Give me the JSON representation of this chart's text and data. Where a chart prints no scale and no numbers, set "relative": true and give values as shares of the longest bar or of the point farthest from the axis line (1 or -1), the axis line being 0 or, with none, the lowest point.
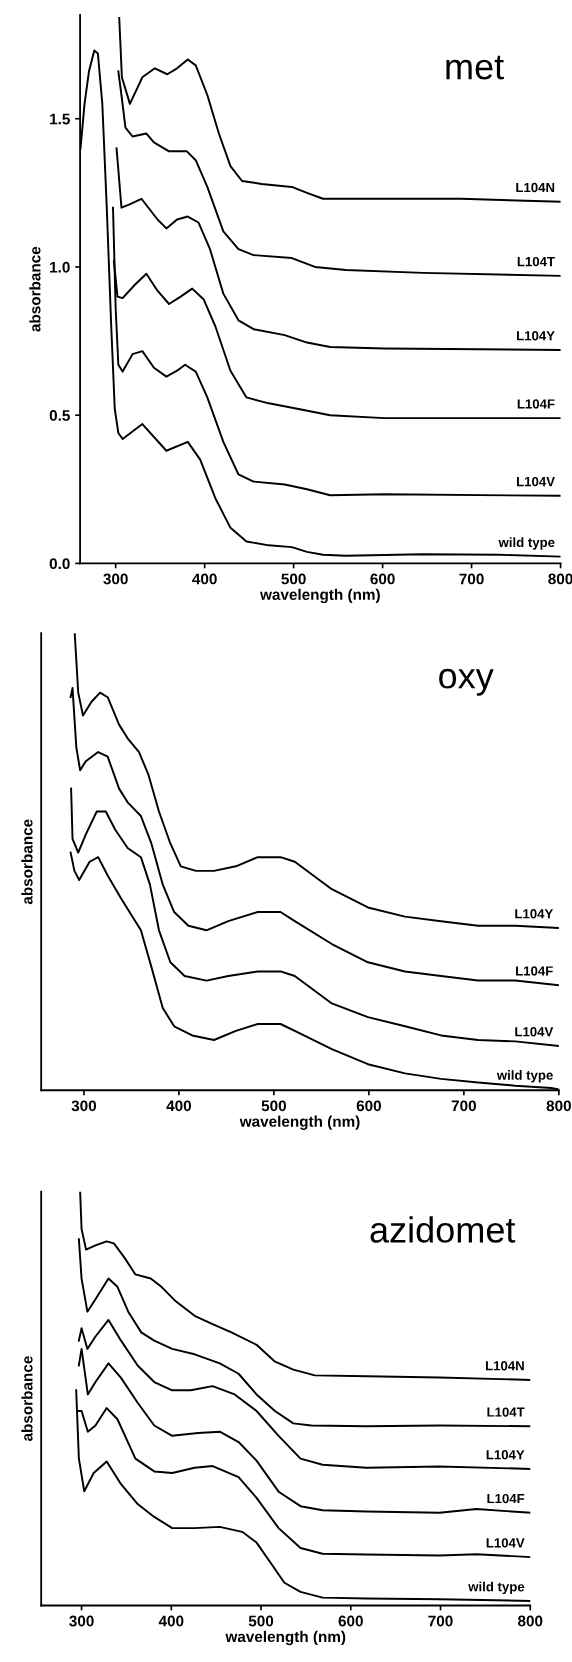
{
  "chart_data": [
    {
      "type": "line",
      "title": "met",
      "xlabel": "wavelength (nm)",
      "ylabel": "absorbance",
      "xlim": [
        260,
        800
      ],
      "xticks": [
        300,
        400,
        500,
        600,
        700,
        800
      ],
      "ylim": [
        0,
        1.85
      ],
      "yticks": [
        {
          "value": 0,
          "label": "0.0"
        },
        0.5,
        {
          "value": 1,
          "label": "1.0"
        },
        1.5
      ],
      "grid": false,
      "legend": false,
      "marker": "none",
      "line_style": "solid",
      "series": [
        {
          "name": "L104N",
          "color": "#000000",
          "x": [
            304,
            307,
            316,
            330,
            344,
            358,
            369,
            381,
            390,
            403,
            416,
            429,
            442,
            464,
            498,
            515,
            533,
            559,
            602,
            688,
            800
          ],
          "values": [
            1.84,
            1.64,
            1.55,
            1.64,
            1.67,
            1.65,
            1.67,
            1.7,
            1.68,
            1.58,
            1.45,
            1.34,
            1.29,
            1.28,
            1.27,
            1.25,
            1.23,
            1.23,
            1.23,
            1.23,
            1.22
          ]
        },
        {
          "name": "L104T",
          "color": "#000000",
          "x": [
            303,
            306.5,
            311,
            319,
            334.5,
            343,
            360,
            380,
            390,
            403,
            421,
            438,
            455,
            498,
            524,
            559,
            645,
            800
          ],
          "values": [
            1.66,
            1.58,
            1.47,
            1.44,
            1.45,
            1.42,
            1.39,
            1.39,
            1.36,
            1.27,
            1.12,
            1.06,
            1.04,
            1.03,
            1.0,
            0.99,
            0.98,
            0.97
          ]
        },
        {
          "name": "L104Y",
          "color": "#000000",
          "x": [
            301,
            306.5,
            315,
            329,
            347,
            357,
            369,
            381,
            393,
            406,
            421,
            438,
            455,
            490,
            515,
            541,
            602,
            800
          ],
          "values": [
            1.4,
            1.2,
            1.21,
            1.23,
            1.16,
            1.13,
            1.16,
            1.17,
            1.15,
            1.06,
            0.91,
            0.82,
            0.79,
            0.77,
            0.745,
            0.73,
            0.725,
            0.72
          ]
        },
        {
          "name": "L104F",
          "color": "#000000",
          "x": [
            298,
            302,
            307.8,
            321.6,
            334.5,
            347,
            360,
            373,
            386,
            399,
            412,
            429,
            447,
            472,
            507,
            541,
            602,
            800
          ],
          "values": [
            1.02,
            0.9,
            0.895,
            0.94,
            0.977,
            0.92,
            0.875,
            0.9,
            0.927,
            0.89,
            0.8,
            0.65,
            0.56,
            0.54,
            0.52,
            0.5,
            0.49,
            0.49
          ]
        },
        {
          "name": "L104V",
          "color": "#000000",
          "x": [
            297,
            300,
            303,
            307.8,
            319,
            330,
            343,
            357,
            369,
            378,
            390,
            403,
            421,
            438,
            455,
            490,
            515,
            541,
            602,
            800
          ],
          "values": [
            1.2,
            0.86,
            0.67,
            0.647,
            0.706,
            0.716,
            0.66,
            0.63,
            0.65,
            0.67,
            0.647,
            0.56,
            0.41,
            0.3,
            0.276,
            0.266,
            0.25,
            0.23,
            0.233,
            0.228
          ]
        },
        {
          "name": "wild type",
          "color": "#000000",
          "x": [
            260.5,
            265,
            270,
            276,
            280,
            285,
            290,
            295,
            299,
            303,
            307.8,
            330,
            357,
            381,
            395,
            412,
            429,
            447,
            472,
            498,
            515,
            533,
            559,
            645,
            731,
            800
          ],
          "values": [
            1.4,
            1.55,
            1.66,
            1.73,
            1.72,
            1.55,
            1.2,
            0.8,
            0.52,
            0.44,
            0.42,
            0.47,
            0.38,
            0.41,
            0.35,
            0.22,
            0.12,
            0.074,
            0.061,
            0.055,
            0.039,
            0.029,
            0.026,
            0.031,
            0.029,
            0.023
          ]
        }
      ]
    },
    {
      "type": "line",
      "title": "oxy",
      "xlabel": "wavelength (nm)",
      "ylabel": "absorbance",
      "relative": true,
      "tick_labels": "x",
      "xlim": [
        255,
        800
      ],
      "xticks": [
        300,
        400,
        500,
        600,
        700,
        800
      ],
      "grid": false,
      "legend": false,
      "marker": "none",
      "line_style": "solid",
      "series": [
        {
          "name": "L104Y",
          "color": "#000000",
          "x": [
            290.3,
            294,
            299,
            308,
            317,
            325,
            337,
            346,
            358,
            368,
            379,
            391,
            402,
            418,
            437,
            460,
            483,
            507,
            522,
            561,
            599,
            638,
            676,
            715,
            754,
            800
          ],
          "values": [
            1.0,
            0.87,
            0.82,
            0.85,
            0.87,
            0.86,
            0.8,
            0.77,
            0.74,
            0.69,
            0.61,
            0.54,
            0.49,
            0.48,
            0.48,
            0.49,
            0.51,
            0.51,
            0.5,
            0.44,
            0.4,
            0.38,
            0.37,
            0.36,
            0.36,
            0.355
          ]
        },
        {
          "name": "L104F",
          "color": "#000000",
          "x": [
            286,
            288,
            292,
            296,
            302,
            315,
            325,
            337,
            346,
            360,
            371,
            383,
            395,
            410,
            429,
            452,
            483,
            507,
            522,
            561,
            599,
            638,
            676,
            715,
            754,
            800
          ],
          "values": [
            0.86,
            0.88,
            0.75,
            0.7,
            0.72,
            0.74,
            0.73,
            0.66,
            0.63,
            0.6,
            0.54,
            0.45,
            0.39,
            0.36,
            0.35,
            0.37,
            0.39,
            0.39,
            0.37,
            0.32,
            0.28,
            0.26,
            0.25,
            0.24,
            0.24,
            0.23
          ]
        },
        {
          "name": "L104V",
          "color": "#000000",
          "x": [
            286.5,
            288,
            294,
            302,
            313.5,
            323,
            333,
            346,
            360,
            369.5,
            379,
            391,
            406,
            429,
            452,
            483,
            507,
            522,
            561,
            599,
            638,
            676,
            715,
            754,
            800
          ],
          "values": [
            0.66,
            0.55,
            0.52,
            0.56,
            0.61,
            0.61,
            0.57,
            0.53,
            0.51,
            0.45,
            0.35,
            0.28,
            0.25,
            0.24,
            0.25,
            0.26,
            0.26,
            0.25,
            0.19,
            0.16,
            0.14,
            0.12,
            0.11,
            0.107,
            0.097
          ]
        },
        {
          "name": "wild type",
          "color": "#000000",
          "x": [
            286,
            290,
            295,
            306,
            315,
            325,
            339,
            348,
            360,
            371,
            383,
            395,
            414,
            437,
            460,
            483,
            507,
            522,
            561,
            599,
            638,
            676,
            715,
            754,
            792,
            800
          ],
          "values": [
            0.52,
            0.48,
            0.46,
            0.5,
            0.51,
            0.47,
            0.42,
            0.39,
            0.35,
            0.27,
            0.18,
            0.14,
            0.12,
            0.11,
            0.13,
            0.145,
            0.145,
            0.13,
            0.09,
            0.057,
            0.037,
            0.025,
            0.017,
            0.01,
            0.005,
            0.002
          ]
        }
      ]
    },
    {
      "type": "line",
      "title": "azidomet",
      "xlabel": "wavelength (nm)",
      "ylabel": "absorbance",
      "relative": true,
      "tick_labels": "x",
      "xlim": [
        255,
        800
      ],
      "xticks": [
        300,
        400,
        500,
        600,
        700,
        800
      ],
      "grid": false,
      "legend": false,
      "marker": "none",
      "line_style": "solid",
      "series": [
        {
          "name": "L104N",
          "color": "#000000",
          "x": [
            298.4,
            300,
            305,
            315.5,
            328,
            336,
            348,
            360,
            377,
            389,
            405,
            426,
            446,
            467,
            495,
            515,
            536,
            560,
            618,
            699,
            800
          ],
          "values": [
            1.0,
            0.91,
            0.86,
            0.87,
            0.88,
            0.875,
            0.84,
            0.8,
            0.79,
            0.77,
            0.735,
            0.7,
            0.68,
            0.66,
            0.63,
            0.59,
            0.57,
            0.556,
            0.554,
            0.551,
            0.545
          ]
        },
        {
          "name": "L104T",
          "color": "#000000",
          "x": [
            297,
            300,
            306.5,
            315.5,
            330,
            340,
            352,
            366.5,
            381,
            401,
            426,
            454,
            475,
            495,
            515.5,
            536,
            556,
            617.5,
            699,
            800
          ],
          "values": [
            0.885,
            0.79,
            0.71,
            0.74,
            0.79,
            0.77,
            0.71,
            0.66,
            0.64,
            0.62,
            0.607,
            0.585,
            0.56,
            0.51,
            0.47,
            0.44,
            0.435,
            0.433,
            0.435,
            0.433
          ]
        },
        {
          "name": "L104Y",
          "color": "#000000",
          "x": [
            297,
            300,
            306.5,
            315.5,
            330,
            344,
            362.5,
            381,
            401,
            421.6,
            446,
            470.6,
            495,
            519.6,
            544,
            568.6,
            617.5,
            699,
            800
          ],
          "values": [
            0.64,
            0.67,
            0.62,
            0.65,
            0.69,
            0.64,
            0.58,
            0.54,
            0.52,
            0.52,
            0.53,
            0.51,
            0.47,
            0.41,
            0.355,
            0.34,
            0.333,
            0.336,
            0.33
          ]
        },
        {
          "name": "L104F",
          "color": "#000000",
          "x": [
            297,
            300,
            307,
            315.5,
            330,
            344,
            362.5,
            381,
            401,
            430,
            454,
            475,
            495,
            519.6,
            544,
            568.6,
            617.5,
            699,
            740,
            800
          ],
          "values": [
            0.58,
            0.62,
            0.51,
            0.54,
            0.585,
            0.55,
            0.49,
            0.435,
            0.41,
            0.417,
            0.42,
            0.395,
            0.35,
            0.275,
            0.24,
            0.23,
            0.227,
            0.224,
            0.233,
            0.224
          ]
        },
        {
          "name": "L104V",
          "color": "#000000",
          "x": [
            297,
            300,
            307,
            315.5,
            328,
            340,
            360,
            381,
            401,
            426,
            446,
            475,
            495,
            519.6,
            544,
            568.6,
            617.5,
            699,
            740,
            800
          ],
          "values": [
            0.47,
            0.47,
            0.42,
            0.435,
            0.477,
            0.45,
            0.355,
            0.324,
            0.32,
            0.333,
            0.337,
            0.31,
            0.26,
            0.187,
            0.139,
            0.125,
            0.123,
            0.121,
            0.124,
            0.117
          ]
        },
        {
          "name": "wild type",
          "color": "#000000",
          "x": [
            294,
            297,
            303,
            313.5,
            328,
            344,
            362.5,
            381,
            401,
            426,
            454,
            479,
            495,
            512,
            526,
            544,
            568.6,
            617.5,
            699,
            800
          ],
          "values": [
            0.52,
            0.355,
            0.276,
            0.32,
            0.348,
            0.293,
            0.245,
            0.214,
            0.187,
            0.187,
            0.19,
            0.178,
            0.152,
            0.099,
            0.055,
            0.033,
            0.019,
            0.017,
            0.015,
            0.011
          ]
        }
      ]
    }
  ]
}
